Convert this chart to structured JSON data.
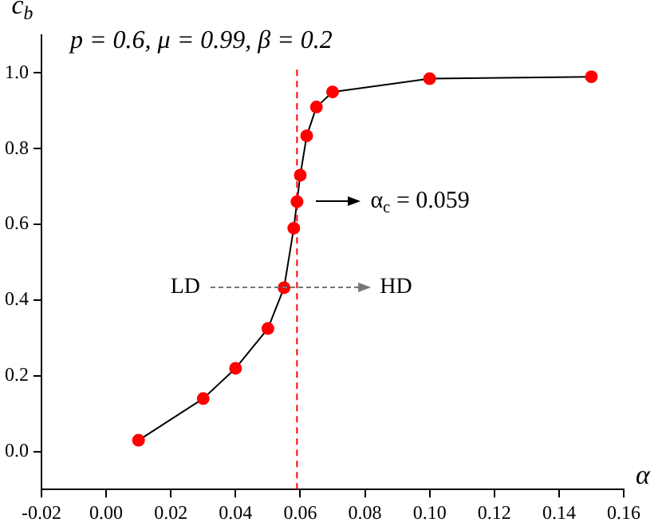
{
  "chart_data": {
    "type": "line",
    "xlabel": "α",
    "ylabel": "c$_{b}$",
    "x": [
      0.01,
      0.03,
      0.04,
      0.05,
      0.055,
      0.058,
      0.059,
      0.06,
      0.062,
      0.065,
      0.07,
      0.1,
      0.15
    ],
    "series": [
      {
        "color": "#ff0000",
        "values": [
          0.03,
          0.14,
          0.22,
          0.325,
          0.433,
          0.59,
          0.66,
          0.73,
          0.834,
          0.91,
          0.95,
          0.985,
          0.99
        ]
      }
    ],
    "marker": "circle",
    "line_style": "solid",
    "grid": false,
    "legend": false,
    "xlim": [
      -0.02,
      0.16
    ],
    "xticks": [
      {
        "value": -0.02,
        "label": "-0.02"
      },
      {
        "value": 0,
        "label": "0.00"
      },
      {
        "value": 0.02,
        "label": "0.02"
      },
      {
        "value": 0.04,
        "label": "0.04"
      },
      {
        "value": 0.06,
        "label": "0.06"
      },
      {
        "value": 0.08,
        "label": "0.08"
      },
      {
        "value": 0.1,
        "label": "0.10"
      },
      {
        "value": 0.12,
        "label": "0.12"
      },
      {
        "value": 0.14,
        "label": "0.14"
      },
      {
        "value": 0.16,
        "label": "0.16"
      }
    ],
    "ylim": [
      -0.1,
      1.1
    ],
    "yticks": [
      {
        "value": 0,
        "label": "0.0"
      },
      {
        "value": 0.2,
        "label": "0.2"
      },
      {
        "value": 0.4,
        "label": "0.4"
      },
      {
        "value": 0.6,
        "label": "0.6"
      },
      {
        "value": 0.8,
        "label": "0.8"
      },
      {
        "value": 1,
        "label": "1.0"
      }
    ],
    "ref_lines": [
      {
        "axis": "x",
        "value": 0.059,
        "color": "#ff0000",
        "line_style": "dashed"
      }
    ],
    "annotations": [
      "p = 0.6, μ = 0.99, β = 0.2",
      "α$_{c}$ = 0.059",
      "LD",
      "HD"
    ]
  }
}
